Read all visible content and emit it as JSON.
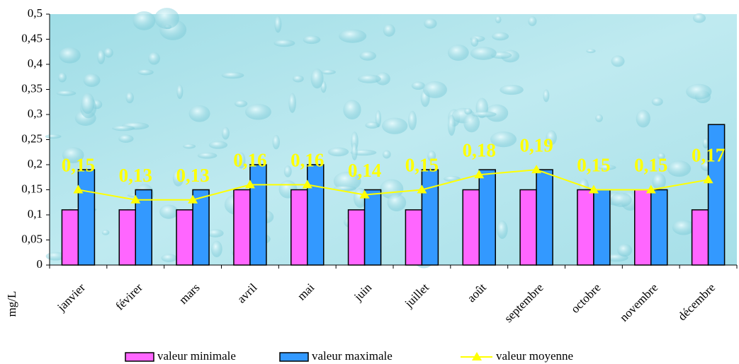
{
  "chart_data": {
    "type": "bar_line",
    "y_label": "mg/L",
    "categories": [
      "janvier",
      "févirer",
      "mars",
      "avril",
      "mai",
      "juin",
      "juillet",
      "août",
      "septembre",
      "octobre",
      "novembre",
      "décembre"
    ],
    "series": [
      {
        "name": "valeur minimale",
        "type": "bar",
        "color": "#ff66ff",
        "values": [
          0.11,
          0.11,
          0.11,
          0.15,
          0.15,
          0.11,
          0.11,
          0.15,
          0.15,
          0.15,
          0.15,
          0.11
        ]
      },
      {
        "name": "valeur maximale",
        "type": "bar",
        "color": "#3399ff",
        "values": [
          0.19,
          0.15,
          0.15,
          0.2,
          0.2,
          0.15,
          0.19,
          0.19,
          0.19,
          0.15,
          0.15,
          0.28
        ]
      },
      {
        "name": "valeur moyenne",
        "type": "line",
        "color": "#ffff00",
        "values": [
          0.15,
          0.13,
          0.13,
          0.16,
          0.16,
          0.14,
          0.15,
          0.18,
          0.19,
          0.15,
          0.15,
          0.17
        ],
        "value_labels": [
          "0,15",
          "0,13",
          "0,13",
          "0,16",
          "0,16",
          "0,14",
          "0,15",
          "0,18",
          "0,19",
          "0,15",
          "0,15",
          "0,17"
        ]
      }
    ],
    "ylim": [
      0,
      0.5
    ],
    "yticks": [
      0,
      {
        "value": 0.05,
        "label": "0,05"
      },
      {
        "value": 0.1,
        "label": "0,1"
      },
      {
        "value": 0.15,
        "label": "0,15"
      },
      {
        "value": 0.2,
        "label": "0,2"
      },
      {
        "value": 0.25,
        "label": "0,25"
      },
      {
        "value": 0.3,
        "label": "0,3"
      },
      {
        "value": 0.35,
        "label": "0,35"
      },
      {
        "value": 0.4,
        "label": "0,4"
      },
      {
        "value": 0.45,
        "label": "0,45"
      },
      {
        "value": 0.5,
        "label": "0,5"
      }
    ],
    "legend": "bottom"
  }
}
